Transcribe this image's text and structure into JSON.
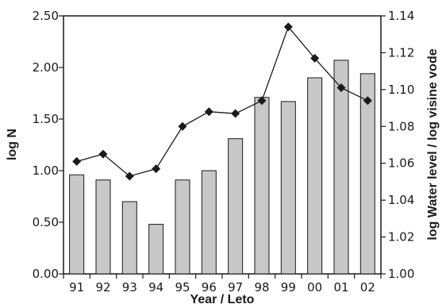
{
  "chart_data": {
    "type": "bar",
    "categories": [
      "91",
      "92",
      "93",
      "94",
      "95",
      "96",
      "97",
      "98",
      "99",
      "00",
      "01",
      "02"
    ],
    "series": [
      {
        "axis": "left",
        "type": "bar",
        "values": [
          0.96,
          0.91,
          0.7,
          0.48,
          0.91,
          1.0,
          1.31,
          1.71,
          1.67,
          1.9,
          2.07,
          1.94
        ]
      },
      {
        "axis": "right",
        "type": "line",
        "values": [
          1.061,
          1.065,
          1.053,
          1.057,
          1.08,
          1.088,
          1.087,
          1.094,
          1.134,
          1.117,
          1.101,
          1.094
        ]
      }
    ],
    "xlabel": "Year / Leto",
    "ylabel": "log N",
    "ylabel_right": "log Water level / log visine vode",
    "ylim": [
      0,
      2.5
    ],
    "ylim_right": [
      1.0,
      1.14
    ],
    "yticks": [
      "0.00",
      "0.50",
      "1.00",
      "1.50",
      "2.00",
      "2.50"
    ],
    "yticks_right": [
      "1.00",
      "1.02",
      "1.04",
      "1.06",
      "1.08",
      "1.10",
      "1.12",
      "1.14"
    ],
    "grid": false,
    "colors": {
      "bar_fill": "#c8c8c8",
      "bar_stroke": "#1a1a1a",
      "line": "#1a1a1a",
      "marker": "#1a1a1a"
    }
  }
}
